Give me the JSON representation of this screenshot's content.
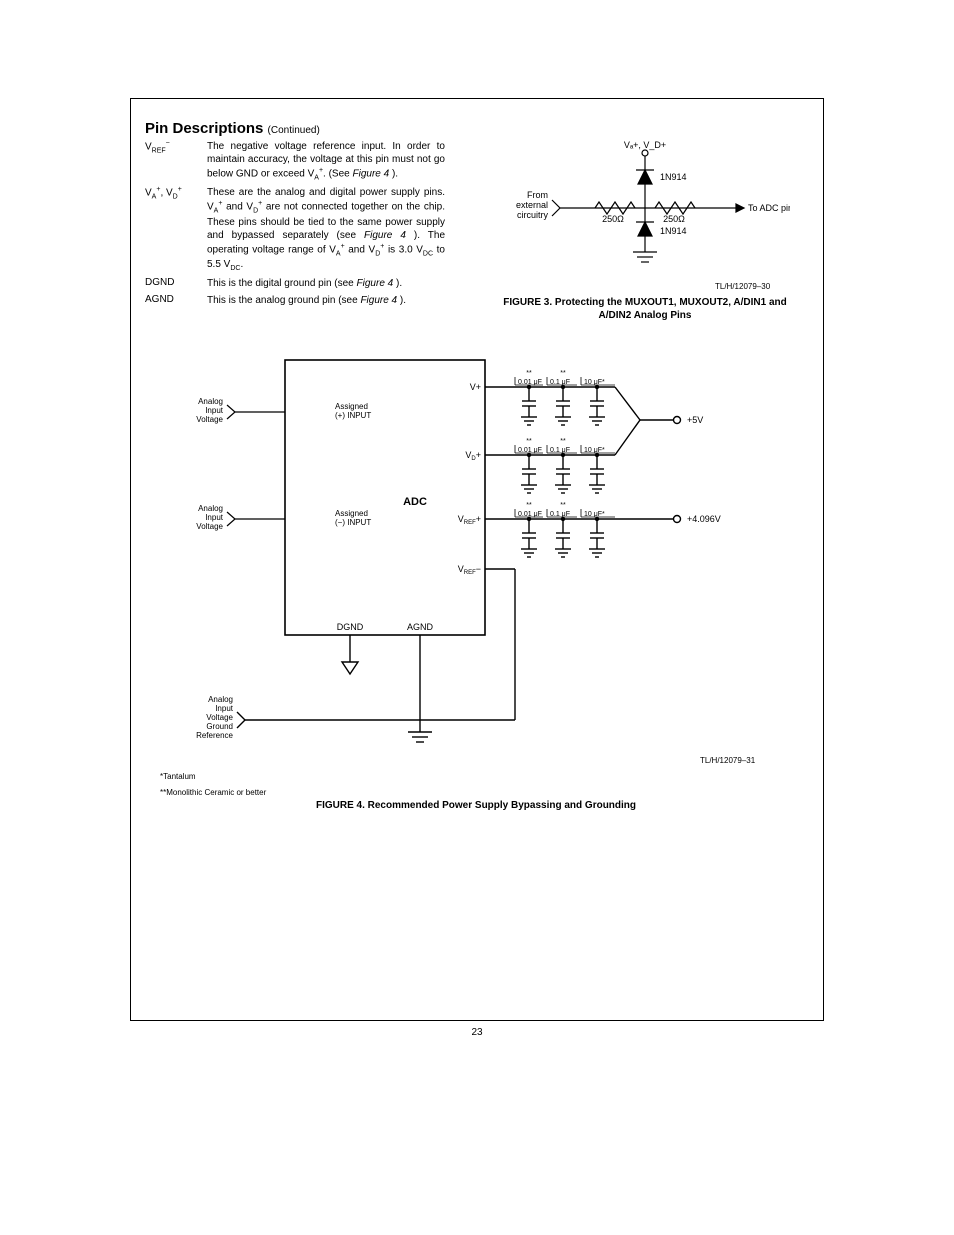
{
  "section": {
    "title": "Pin Descriptions",
    "continued": "(Continued)"
  },
  "pins": {
    "vref_minus": {
      "name_html": "V<span class='sub'>REF</span><span class='sup'>−</span>",
      "desc_html": "The negative voltage reference input. In order to maintain accuracy, the voltage at this pin must not go below GND or exceed V<span class='sub'>A</span><span class='sup'>+</span>. (See <span class='italic'>Figure 4</span> )."
    },
    "va_vd": {
      "name_html": "V<span class='sub'>A</span><span class='sup'>+</span>, V<span class='sub'>D</span><span class='sup'>+</span>",
      "desc_html": "These are the analog and digital power supply pins. V<span class='sub'>A</span><span class='sup'>+</span> and V<span class='sub'>D</span><span class='sup'>+</span> are not connected together on the chip. These pins should be tied to the same power supply and bypassed separately (see <span class='italic'>Figure 4</span> ). The operating voltage range of V<span class='sub'>A</span><span class='sup'>+</span> and V<span class='sub'>D</span><span class='sup'>+</span> is 3.0 V<span class='sub'>DC</span> to 5.5 V<span class='sub'>DC</span>."
    },
    "dgnd": {
      "name_html": "DGND",
      "desc_html": "This is the digital ground pin (see <span class='italic'>Figure 4</span> )."
    },
    "agnd": {
      "name_html": "AGND",
      "desc_html": "This is the analog ground pin (see <span class='italic'>Figure 4</span> )."
    }
  },
  "figure3": {
    "caption": "FIGURE 3. Protecting the MUXOUT1, MUXOUT2, A/DIN1 and A/DIN2 Analog Pins",
    "ref": "TL/H/12079–30",
    "labels": {
      "top": "Vₐ+, V_D+",
      "d1": "1N914",
      "d2": "1N914",
      "r1": "250Ω",
      "r2": "250Ω",
      "left1": "From",
      "left2": "external",
      "left3": "circuitry",
      "right": "To ADC pin"
    },
    "colors": {
      "stroke": "#000000",
      "fill": "#000000"
    },
    "stroke_width": 1.2
  },
  "figure4": {
    "caption": "FIGURE 4. Recommended Power Supply Bypassing and Grounding",
    "ref": "TL/H/12079–31",
    "chip_label": "ADC",
    "labels": {
      "v_plus": "V+",
      "vd_plus": "V_D+",
      "vref_plus": "V_REF+",
      "vref_minus": "V_REF−",
      "dgnd": "DGND",
      "agnd": "AGND",
      "assigned_plus1": "Assigned",
      "assigned_plus2": "(+) INPUT",
      "assigned_minus1": "Assigned",
      "assigned_minus2": "(−) INPUT",
      "ain1": "Analog",
      "ain2": "Input",
      "ain3": "Voltage",
      "gnd1": "Analog",
      "gnd2": "Input",
      "gnd3": "Voltage",
      "gnd4": "Ground",
      "gnd5": "Reference",
      "cap1": "0.01 μF",
      "cap2": "0.1 μF",
      "cap3": "10 μF*",
      "v5": "+5V",
      "v4096": "+4.096V"
    },
    "caps_mark": "**",
    "colors": {
      "stroke": "#000000",
      "fill": "#000000"
    },
    "stroke_width": 1.4
  },
  "footnotes": {
    "f1": "*Tantalum",
    "f2": "**Monolithic Ceramic or better"
  },
  "page_number": "23"
}
